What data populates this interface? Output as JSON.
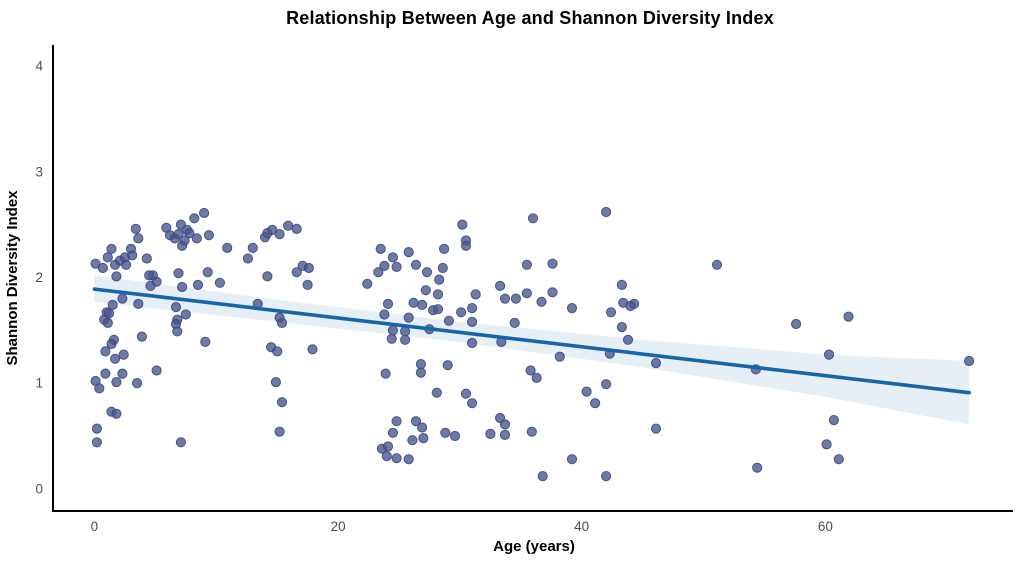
{
  "figure": {
    "title": "Relationship Between Age and Shannon Diversity Index"
  },
  "chart_data": {
    "type": "scatter",
    "title": "Relationship Between Age and Shannon Diversity Index",
    "xlabel": "Age (years)",
    "ylabel": "Shannon Diversity Index",
    "x_ticks": [
      0,
      20,
      40,
      60
    ],
    "y_ticks": [
      0,
      1,
      2,
      3,
      4
    ],
    "xlim": [
      -3.4,
      75.4
    ],
    "ylim": [
      -0.21,
      4.2
    ],
    "grid": false,
    "legend": "none",
    "colors": {
      "point_fill": "#46538c",
      "point_edge": "#3d4a7d",
      "regression_line": "#1565a8",
      "confidence_band": "#2e75b5",
      "axis_line": "#000000",
      "tick_text": "#4d4d4d"
    },
    "regression_line": {
      "x": [
        0,
        71.8
      ],
      "y": [
        1.89,
        0.91
      ]
    },
    "confidence_band": {
      "x": [
        0,
        15,
        30,
        45,
        60,
        71.8
      ],
      "upper": [
        2.02,
        1.79,
        1.58,
        1.41,
        1.27,
        1.21
      ],
      "lower": [
        1.77,
        1.58,
        1.39,
        1.15,
        0.87,
        0.61
      ]
    },
    "points": [
      [
        0.1,
        2.13
      ],
      [
        0.7,
        2.09
      ],
      [
        1.1,
        2.19
      ],
      [
        1.4,
        2.27
      ],
      [
        1.7,
        2.12
      ],
      [
        2.1,
        2.16
      ],
      [
        2.5,
        2.19
      ],
      [
        2.6,
        2.12
      ],
      [
        3.0,
        2.27
      ],
      [
        3.1,
        2.21
      ],
      [
        3.4,
        2.46
      ],
      [
        3.6,
        2.37
      ],
      [
        4.3,
        2.18
      ],
      [
        4.8,
        2.02
      ],
      [
        5.1,
        1.96
      ],
      [
        5.9,
        2.47
      ],
      [
        6.2,
        2.4
      ],
      [
        6.6,
        2.37
      ],
      [
        6.9,
        2.41
      ],
      [
        7.1,
        2.5
      ],
      [
        7.2,
        2.3
      ],
      [
        7.4,
        2.35
      ],
      [
        7.6,
        2.45
      ],
      [
        7.8,
        2.42
      ],
      [
        8.2,
        2.56
      ],
      [
        8.4,
        2.37
      ],
      [
        9.0,
        2.61
      ],
      [
        9.4,
        2.4
      ],
      [
        10.9,
        2.28
      ],
      [
        12.6,
        2.18
      ],
      [
        13.0,
        2.28
      ],
      [
        14.0,
        2.38
      ],
      [
        14.2,
        2.42
      ],
      [
        14.6,
        2.45
      ],
      [
        15.2,
        2.41
      ],
      [
        15.9,
        2.49
      ],
      [
        16.6,
        2.46
      ],
      [
        17.1,
        2.11
      ],
      [
        17.6,
        2.09
      ],
      [
        1.8,
        2.01
      ],
      [
        4.5,
        2.02
      ],
      [
        6.9,
        2.04
      ],
      [
        9.3,
        2.05
      ],
      [
        4.6,
        1.92
      ],
      [
        7.2,
        1.91
      ],
      [
        8.5,
        1.93
      ],
      [
        10.3,
        1.95
      ],
      [
        14.2,
        2.01
      ],
      [
        16.6,
        2.05
      ],
      [
        17.5,
        1.93
      ],
      [
        2.3,
        1.8
      ],
      [
        1.5,
        1.74
      ],
      [
        3.6,
        1.75
      ],
      [
        1.0,
        1.67
      ],
      [
        1.2,
        1.66
      ],
      [
        0.8,
        1.6
      ],
      [
        1.1,
        1.57
      ],
      [
        6.7,
        1.72
      ],
      [
        6.8,
        1.6
      ],
      [
        7.5,
        1.65
      ],
      [
        6.7,
        1.56
      ],
      [
        6.8,
        1.49
      ],
      [
        13.4,
        1.75
      ],
      [
        15.2,
        1.62
      ],
      [
        15.4,
        1.57
      ],
      [
        3.9,
        1.44
      ],
      [
        1.6,
        1.41
      ],
      [
        1.4,
        1.37
      ],
      [
        9.1,
        1.39
      ],
      [
        14.5,
        1.34
      ],
      [
        15.0,
        1.3
      ],
      [
        17.9,
        1.32
      ],
      [
        0.9,
        1.3
      ],
      [
        1.7,
        1.23
      ],
      [
        2.4,
        1.27
      ],
      [
        0.9,
        1.09
      ],
      [
        0.1,
        1.02
      ],
      [
        1.8,
        1.01
      ],
      [
        2.3,
        1.09
      ],
      [
        0.4,
        0.95
      ],
      [
        3.5,
        1.0
      ],
      [
        5.1,
        1.12
      ],
      [
        1.4,
        0.73
      ],
      [
        1.8,
        0.71
      ],
      [
        0.2,
        0.57
      ],
      [
        0.2,
        0.44
      ],
      [
        7.1,
        0.44
      ],
      [
        14.9,
        1.01
      ],
      [
        15.4,
        0.82
      ],
      [
        15.2,
        0.54
      ],
      [
        30.2,
        2.5
      ],
      [
        36.0,
        2.56
      ],
      [
        30.5,
        2.35
      ],
      [
        30.5,
        2.3
      ],
      [
        23.5,
        2.27
      ],
      [
        24.5,
        2.19
      ],
      [
        25.8,
        2.24
      ],
      [
        23.8,
        2.11
      ],
      [
        24.8,
        2.1
      ],
      [
        26.4,
        2.12
      ],
      [
        23.3,
        2.05
      ],
      [
        28.7,
        2.27
      ],
      [
        28.6,
        2.09
      ],
      [
        27.3,
        2.05
      ],
      [
        28.3,
        1.98
      ],
      [
        22.4,
        1.94
      ],
      [
        27.2,
        1.88
      ],
      [
        28.2,
        1.84
      ],
      [
        33.3,
        1.92
      ],
      [
        35.5,
        2.12
      ],
      [
        37.6,
        2.13
      ],
      [
        31.3,
        1.84
      ],
      [
        33.7,
        1.8
      ],
      [
        34.6,
        1.8
      ],
      [
        35.5,
        1.85
      ],
      [
        36.7,
        1.77
      ],
      [
        37.6,
        1.86
      ],
      [
        24.1,
        1.75
      ],
      [
        26.2,
        1.76
      ],
      [
        26.9,
        1.74
      ],
      [
        27.8,
        1.69
      ],
      [
        28.2,
        1.7
      ],
      [
        30.1,
        1.67
      ],
      [
        31.0,
        1.71
      ],
      [
        31.0,
        1.58
      ],
      [
        29.1,
        1.59
      ],
      [
        34.5,
        1.57
      ],
      [
        25.8,
        1.62
      ],
      [
        23.8,
        1.65
      ],
      [
        24.5,
        1.5
      ],
      [
        25.5,
        1.49
      ],
      [
        27.5,
        1.51
      ],
      [
        24.4,
        1.42
      ],
      [
        25.5,
        1.41
      ],
      [
        31.0,
        1.38
      ],
      [
        33.4,
        1.39
      ],
      [
        26.8,
        1.18
      ],
      [
        26.8,
        1.1
      ],
      [
        29.0,
        1.17
      ],
      [
        23.9,
        1.09
      ],
      [
        35.8,
        1.12
      ],
      [
        36.3,
        1.05
      ],
      [
        28.1,
        0.91
      ],
      [
        30.5,
        0.9
      ],
      [
        31.0,
        0.81
      ],
      [
        33.3,
        0.67
      ],
      [
        24.8,
        0.64
      ],
      [
        26.4,
        0.64
      ],
      [
        24.5,
        0.53
      ],
      [
        26.9,
        0.58
      ],
      [
        27.0,
        0.48
      ],
      [
        28.8,
        0.53
      ],
      [
        29.6,
        0.5
      ],
      [
        32.5,
        0.52
      ],
      [
        33.7,
        0.51
      ],
      [
        33.7,
        0.61
      ],
      [
        35.9,
        0.54
      ],
      [
        23.6,
        0.38
      ],
      [
        24.1,
        0.4
      ],
      [
        24.0,
        0.31
      ],
      [
        24.8,
        0.29
      ],
      [
        25.8,
        0.28
      ],
      [
        26.1,
        0.46
      ],
      [
        36.8,
        0.12
      ],
      [
        42.0,
        2.62
      ],
      [
        51.1,
        2.12
      ],
      [
        43.3,
        1.93
      ],
      [
        43.4,
        1.76
      ],
      [
        44.3,
        1.75
      ],
      [
        44.0,
        1.73
      ],
      [
        42.4,
        1.67
      ],
      [
        39.2,
        1.71
      ],
      [
        43.3,
        1.53
      ],
      [
        43.8,
        1.41
      ],
      [
        42.3,
        1.28
      ],
      [
        38.2,
        1.25
      ],
      [
        46.1,
        1.19
      ],
      [
        54.3,
        1.13
      ],
      [
        42.0,
        0.99
      ],
      [
        40.4,
        0.92
      ],
      [
        41.1,
        0.81
      ],
      [
        46.1,
        0.57
      ],
      [
        39.2,
        0.28
      ],
      [
        42.0,
        0.12
      ],
      [
        54.4,
        0.2
      ],
      [
        57.6,
        1.56
      ],
      [
        61.9,
        1.63
      ],
      [
        60.3,
        1.27
      ],
      [
        71.8,
        1.21
      ],
      [
        60.7,
        0.65
      ],
      [
        60.1,
        0.42
      ],
      [
        61.1,
        0.28
      ]
    ]
  }
}
